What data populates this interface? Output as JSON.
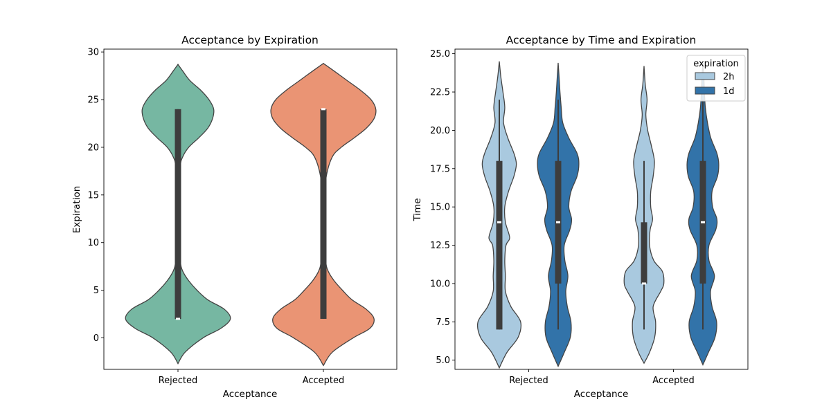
{
  "chart_data": [
    {
      "type": "violin",
      "title": "Acceptance by Expiration",
      "xlabel": "Acceptance",
      "ylabel": "Expiration",
      "categories": [
        "Rejected",
        "Accepted"
      ],
      "ylim": [
        -3.3,
        30.3
      ],
      "yticks": [
        0,
        5,
        10,
        15,
        20,
        25,
        30
      ],
      "yticklabels": [
        "0",
        "5",
        "10",
        "15",
        "20",
        "25",
        "30"
      ],
      "colors": [
        "#76b7a2",
        "#ea9474"
      ],
      "violins": [
        {
          "category": "Rejected",
          "color": "#76b7a2",
          "min": -2.7,
          "max": 28.7,
          "profile": [
            [
              -2.7,
              0
            ],
            [
              -1.5,
              0.12
            ],
            [
              0,
              0.42
            ],
            [
              1,
              0.72
            ],
            [
              2,
              0.88
            ],
            [
              3,
              0.78
            ],
            [
              4,
              0.5
            ],
            [
              5,
              0.32
            ],
            [
              6,
              0.18
            ],
            [
              7,
              0.08
            ],
            [
              8,
              0.04
            ],
            [
              10,
              0.03
            ],
            [
              15,
              0.03
            ],
            [
              18,
              0.04
            ],
            [
              19,
              0.08
            ],
            [
              20,
              0.18
            ],
            [
              21,
              0.35
            ],
            [
              22,
              0.5
            ],
            [
              23,
              0.58
            ],
            [
              24,
              0.6
            ],
            [
              25,
              0.52
            ],
            [
              26,
              0.38
            ],
            [
              27,
              0.2
            ],
            [
              28,
              0.08
            ],
            [
              28.7,
              0
            ]
          ],
          "q1": 2,
          "median": 2,
          "q3": 24,
          "whisker_low": 2,
          "whisker_high": 24
        },
        {
          "category": "Accepted",
          "color": "#ea9474",
          "min": -2.9,
          "max": 28.8,
          "profile": [
            [
              -2.9,
              0
            ],
            [
              -1.5,
              0.15
            ],
            [
              0,
              0.5
            ],
            [
              1,
              0.78
            ],
            [
              2,
              0.85
            ],
            [
              3,
              0.72
            ],
            [
              4,
              0.48
            ],
            [
              5,
              0.32
            ],
            [
              6,
              0.18
            ],
            [
              7,
              0.08
            ],
            [
              8,
              0.04
            ],
            [
              10,
              0.03
            ],
            [
              15,
              0.03
            ],
            [
              17,
              0.05
            ],
            [
              19,
              0.15
            ],
            [
              20,
              0.3
            ],
            [
              21,
              0.52
            ],
            [
              22,
              0.72
            ],
            [
              23,
              0.85
            ],
            [
              24,
              0.88
            ],
            [
              25,
              0.8
            ],
            [
              26,
              0.62
            ],
            [
              27,
              0.4
            ],
            [
              28,
              0.18
            ],
            [
              28.8,
              0
            ]
          ],
          "q1": 2,
          "median": 24,
          "q3": 24,
          "whisker_low": 2,
          "whisker_high": 24
        }
      ]
    },
    {
      "type": "violin",
      "title": "Acceptance by Time and Expiration",
      "xlabel": "Acceptance",
      "ylabel": "Time",
      "categories": [
        "Rejected",
        "Accepted"
      ],
      "ylim": [
        4.4,
        25.3
      ],
      "yticks": [
        5.0,
        7.5,
        10.0,
        12.5,
        15.0,
        17.5,
        20.0,
        22.5,
        25.0
      ],
      "yticklabels": [
        "5.0",
        "7.5",
        "10.0",
        "12.5",
        "15.0",
        "17.5",
        "20.0",
        "22.5",
        "25.0"
      ],
      "legend": {
        "title": "expiration",
        "position": "top-right",
        "entries": [
          {
            "label": "2h",
            "color": "#a9c9df"
          },
          {
            "label": "1d",
            "color": "#3273a9"
          }
        ]
      },
      "violins": [
        {
          "category": "Rejected",
          "hue": "2h",
          "color": "#a9c9df",
          "min": 4.5,
          "max": 24.5,
          "profile": [
            [
              4.5,
              0
            ],
            [
              5.5,
              0.25
            ],
            [
              6.5,
              0.62
            ],
            [
              7.5,
              0.7
            ],
            [
              8.5,
              0.38
            ],
            [
              9.5,
              0.2
            ],
            [
              10.5,
              0.2
            ],
            [
              11.5,
              0.18
            ],
            [
              12.5,
              0.22
            ],
            [
              13,
              0.34
            ],
            [
              14,
              0.2
            ],
            [
              15,
              0.18
            ],
            [
              16,
              0.3
            ],
            [
              17,
              0.48
            ],
            [
              17.8,
              0.56
            ],
            [
              18.5,
              0.48
            ],
            [
              19.5,
              0.28
            ],
            [
              20.5,
              0.14
            ],
            [
              21.5,
              0.18
            ],
            [
              22.5,
              0.12
            ],
            [
              23.5,
              0.05
            ],
            [
              24.5,
              0
            ]
          ],
          "q1": 7,
          "median": 14,
          "q3": 18,
          "whisker_low": 7,
          "whisker_high": 22
        },
        {
          "category": "Rejected",
          "hue": "1d",
          "color": "#3273a9",
          "min": 4.6,
          "max": 24.4,
          "profile": [
            [
              4.6,
              0
            ],
            [
              5.5,
              0.2
            ],
            [
              6.5,
              0.4
            ],
            [
              7.5,
              0.42
            ],
            [
              8.5,
              0.3
            ],
            [
              9.5,
              0.25
            ],
            [
              10.5,
              0.32
            ],
            [
              11.5,
              0.22
            ],
            [
              12.5,
              0.2
            ],
            [
              13.5,
              0.38
            ],
            [
              14.2,
              0.44
            ],
            [
              15,
              0.35
            ],
            [
              16,
              0.42
            ],
            [
              17,
              0.62
            ],
            [
              17.8,
              0.68
            ],
            [
              18.5,
              0.62
            ],
            [
              19.5,
              0.35
            ],
            [
              20.5,
              0.15
            ],
            [
              21.5,
              0.1
            ],
            [
              22.5,
              0.06
            ],
            [
              23.5,
              0.03
            ],
            [
              24.4,
              0
            ]
          ],
          "q1": 10,
          "median": 14,
          "q3": 18,
          "whisker_low": 7,
          "whisker_high": 22
        },
        {
          "category": "Accepted",
          "hue": "2h",
          "color": "#a9c9df",
          "min": 4.8,
          "max": 24.2,
          "profile": [
            [
              4.8,
              0
            ],
            [
              5.5,
              0.18
            ],
            [
              6.5,
              0.35
            ],
            [
              7.5,
              0.38
            ],
            [
              8.5,
              0.3
            ],
            [
              9.5,
              0.55
            ],
            [
              10,
              0.65
            ],
            [
              10.8,
              0.6
            ],
            [
              11.5,
              0.32
            ],
            [
              12.5,
              0.18
            ],
            [
              13.5,
              0.2
            ],
            [
              14.2,
              0.28
            ],
            [
              15,
              0.22
            ],
            [
              16,
              0.22
            ],
            [
              17,
              0.3
            ],
            [
              18,
              0.34
            ],
            [
              19,
              0.24
            ],
            [
              20,
              0.12
            ],
            [
              21,
              0.06
            ],
            [
              22,
              0.1
            ],
            [
              23,
              0.04
            ],
            [
              24.2,
              0
            ]
          ],
          "q1": 10,
          "median": 10,
          "q3": 14,
          "whisker_low": 7,
          "whisker_high": 18
        },
        {
          "category": "Accepted",
          "hue": "1d",
          "color": "#3273a9",
          "min": 4.7,
          "max": 24.4,
          "profile": [
            [
              4.7,
              0
            ],
            [
              5.5,
              0.18
            ],
            [
              6.5,
              0.4
            ],
            [
              7.5,
              0.45
            ],
            [
              8.5,
              0.3
            ],
            [
              9.5,
              0.25
            ],
            [
              10.5,
              0.38
            ],
            [
              11.5,
              0.2
            ],
            [
              12.5,
              0.2
            ],
            [
              13.5,
              0.42
            ],
            [
              14.2,
              0.46
            ],
            [
              15,
              0.32
            ],
            [
              16,
              0.3
            ],
            [
              17,
              0.48
            ],
            [
              17.8,
              0.52
            ],
            [
              18.5,
              0.46
            ],
            [
              19.5,
              0.26
            ],
            [
              20.5,
              0.15
            ],
            [
              21.5,
              0.08
            ],
            [
              22.5,
              0.05
            ],
            [
              23.5,
              0.03
            ],
            [
              24.4,
              0
            ]
          ],
          "q1": 10,
          "median": 14,
          "q3": 18,
          "whisker_low": 7,
          "whisker_high": 22
        }
      ]
    }
  ]
}
